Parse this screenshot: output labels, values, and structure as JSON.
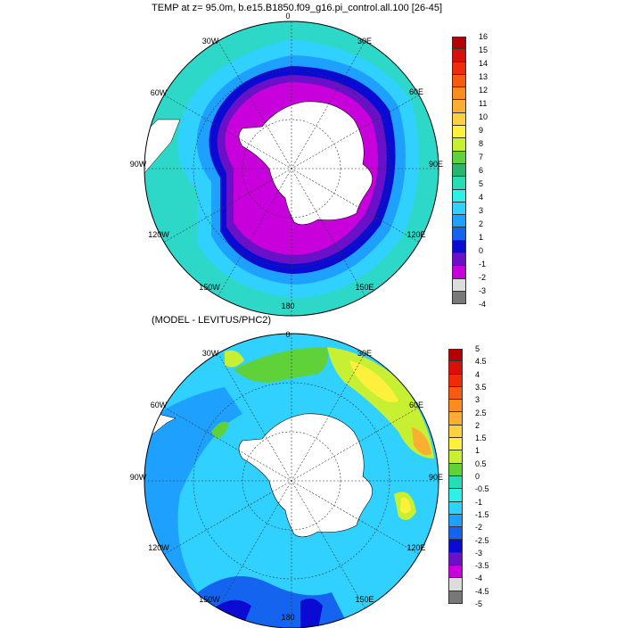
{
  "top_panel": {
    "title": "TEMP at z=  95.0m, b.e15.B1850.f09_g16.pi_control.all.100 [26-45]",
    "lon_labels": [
      "0",
      "30E",
      "60E",
      "90E",
      "120E",
      "150E",
      "180",
      "150W",
      "120W",
      "90W",
      "60W",
      "30W"
    ],
    "colorbar": {
      "labels": [
        "16",
        "15",
        "14",
        "13",
        "12",
        "11",
        "10",
        "9",
        "8",
        "7",
        "6",
        "5",
        "4",
        "3",
        "2",
        "1",
        "0",
        "-1",
        "-2",
        "-3",
        "-4"
      ],
      "colors": [
        "#b30000",
        "#d9100a",
        "#f02a0a",
        "#f75a14",
        "#fb8c1e",
        "#fbae32",
        "#fcd040",
        "#fef03c",
        "#c8f032",
        "#5fd23a",
        "#2ab46e",
        "#28dcb4",
        "#2ef0e6",
        "#30d0ff",
        "#1ea0ff",
        "#1464f0",
        "#0a0ad2",
        "#6a10c8",
        "#c800dc",
        "#dcdcdc",
        "#787878"
      ]
    }
  },
  "bottom_panel": {
    "title": "(MODEL - LEVITUS/PHC2)",
    "lon_labels": [
      "0",
      "30E",
      "60E",
      "90E",
      "120E",
      "150E",
      "180",
      "150W",
      "120W",
      "90W",
      "60W",
      "30W"
    ],
    "colorbar": {
      "labels": [
        "5",
        "4.5",
        "4",
        "3.5",
        "3",
        "2.5",
        "2",
        "1.5",
        "1",
        "0.5",
        "0",
        "-0.5",
        "-1",
        "-1.5",
        "-2",
        "-2.5",
        "-3",
        "-3.5",
        "-4",
        "-4.5",
        "-5"
      ],
      "colors": [
        "#b30000",
        "#d9100a",
        "#f02a0a",
        "#f75a14",
        "#fb8c1e",
        "#fbae32",
        "#fcd040",
        "#fef03c",
        "#c8f032",
        "#5fd23a",
        "#28dcb4",
        "#2ef0e6",
        "#30d0ff",
        "#1ea0ff",
        "#1464f0",
        "#0a0ad2",
        "#6a10c8",
        "#c800dc",
        "#dcdcdc",
        "#787878"
      ]
    }
  }
}
